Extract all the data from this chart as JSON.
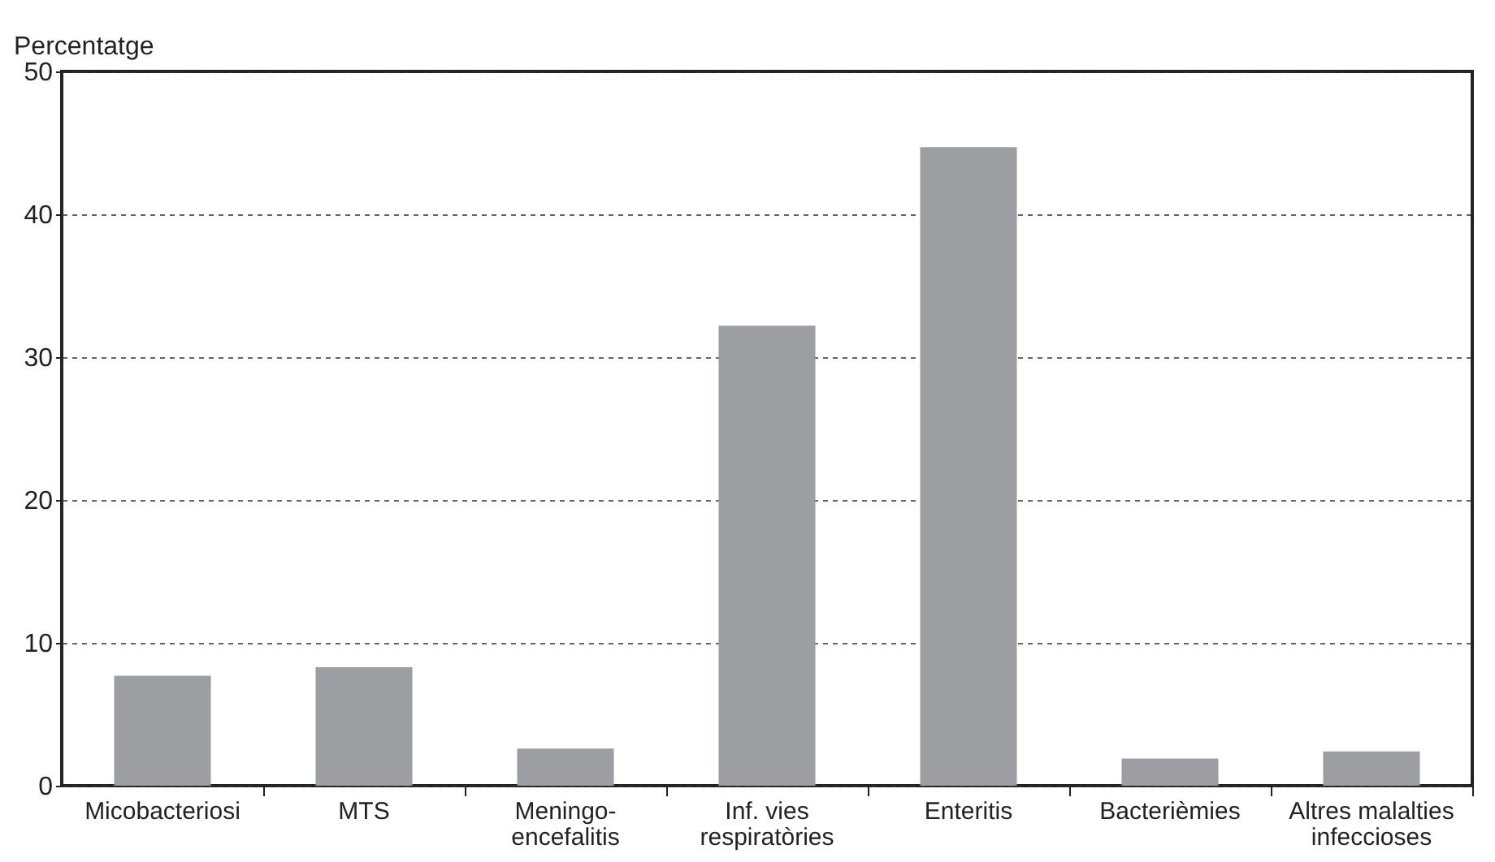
{
  "chart_data": {
    "type": "bar",
    "ylabel": "Percentatge",
    "categories": [
      "Micobacteriosi",
      "MTS",
      "Meningo-\nencefalitis",
      "Inf. vies\nrespiratòries",
      "Enteritis",
      "Bacterièmies",
      "Altres malalties\ninfeccioses"
    ],
    "values": [
      7.7,
      8.3,
      2.6,
      32.2,
      44.7,
      1.9,
      2.4
    ],
    "color": "#9d9ea2",
    "ylim": [
      0,
      50
    ],
    "yticks": [
      0,
      10,
      20,
      30,
      40,
      50
    ],
    "grid": "y"
  }
}
